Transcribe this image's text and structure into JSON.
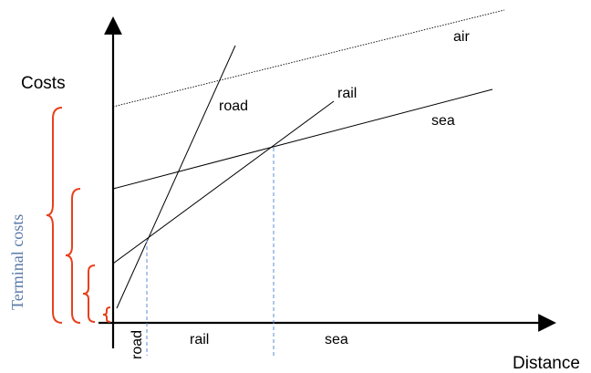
{
  "axes": {
    "y_label": "Costs",
    "x_label": "Distance"
  },
  "cost_lines": [
    {
      "mode": "road",
      "label": "road",
      "style": "solid"
    },
    {
      "mode": "rail",
      "label": "rail",
      "style": "solid"
    },
    {
      "mode": "sea",
      "label": "sea",
      "style": "solid"
    },
    {
      "mode": "air",
      "label": "air",
      "style": "dotted"
    }
  ],
  "terminal_costs_label": "Terminal costs",
  "distance_zones": [
    {
      "label": "road",
      "orientation": "vertical"
    },
    {
      "label": "rail"
    },
    {
      "label": "sea"
    }
  ],
  "colors": {
    "axis": "#000000",
    "cost_line": "#000000",
    "brace": "#e8401c",
    "terminal_label": "#5a7aa8",
    "breakpoint_dash": "#5b8fd1"
  }
}
